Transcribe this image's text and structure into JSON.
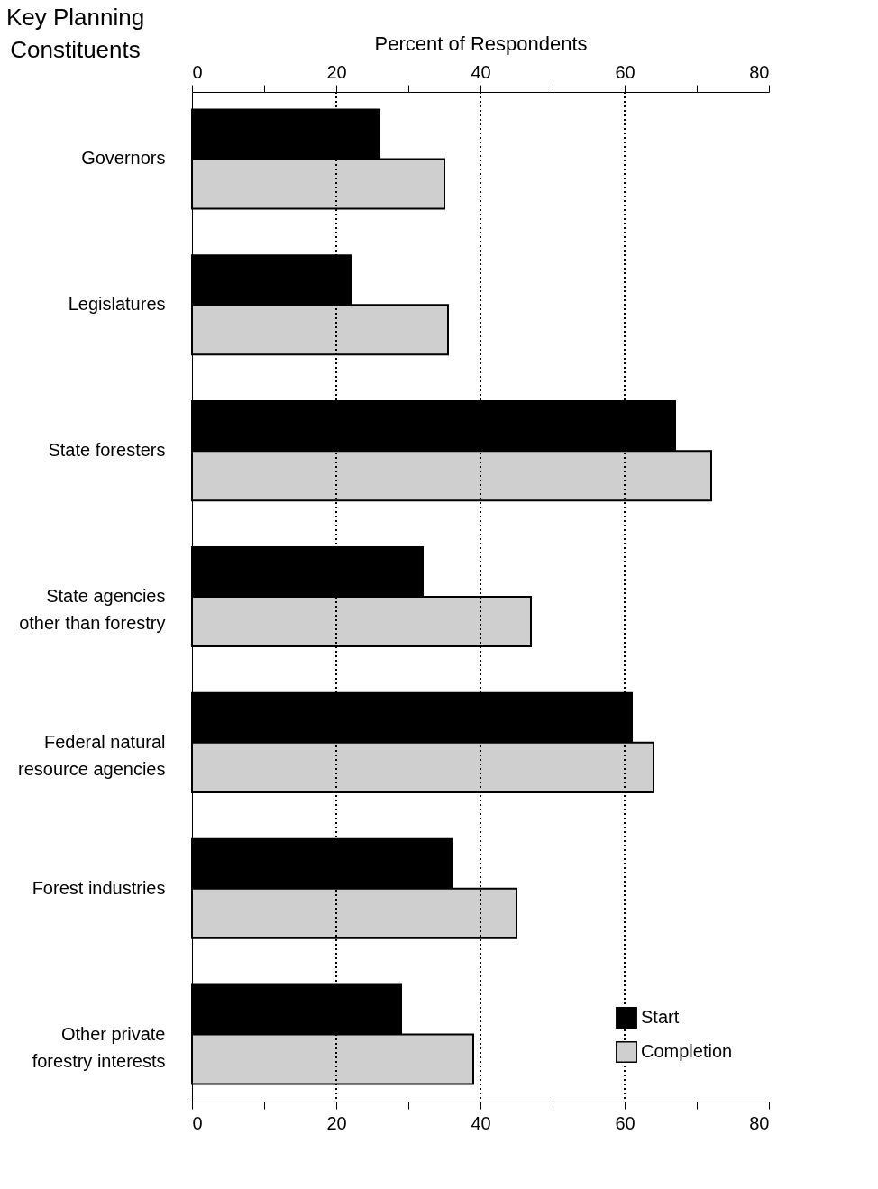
{
  "chart_data": {
    "type": "bar",
    "orientation": "horizontal",
    "ylabel": "Key Planning Constituents",
    "xlabel": null,
    "x2label": "Percent of Respondents",
    "categories": [
      "Governors",
      "Legislatures",
      "State foresters",
      "State agencies other than forestry",
      "Federal natural resource agencies",
      "Forest industries",
      "Other private forestry interests"
    ],
    "series": [
      {
        "name": "Start",
        "color": "#000000",
        "values": [
          26,
          22,
          67,
          32,
          61,
          36,
          29
        ]
      },
      {
        "name": "Completion",
        "color": "#cfcfcf",
        "values": [
          35,
          35.5,
          72,
          47,
          64,
          45,
          39
        ]
      }
    ],
    "xlim": [
      0,
      80
    ],
    "xticks": [
      0,
      {
        "value": 10,
        "label": null
      },
      20,
      {
        "value": 30,
        "label": null
      },
      40,
      {
        "value": 50,
        "label": null
      },
      60,
      {
        "value": 70,
        "label": null
      },
      80
    ],
    "x2lim": [
      0,
      80
    ],
    "x2ticks": [
      0,
      {
        "value": 10,
        "label": null
      },
      20,
      {
        "value": 30,
        "label": null
      },
      40,
      {
        "value": 50,
        "label": null
      },
      60,
      {
        "value": 70,
        "label": null
      },
      80
    ],
    "grid": "x",
    "line_style": "dotted",
    "legend": "bottom right"
  }
}
